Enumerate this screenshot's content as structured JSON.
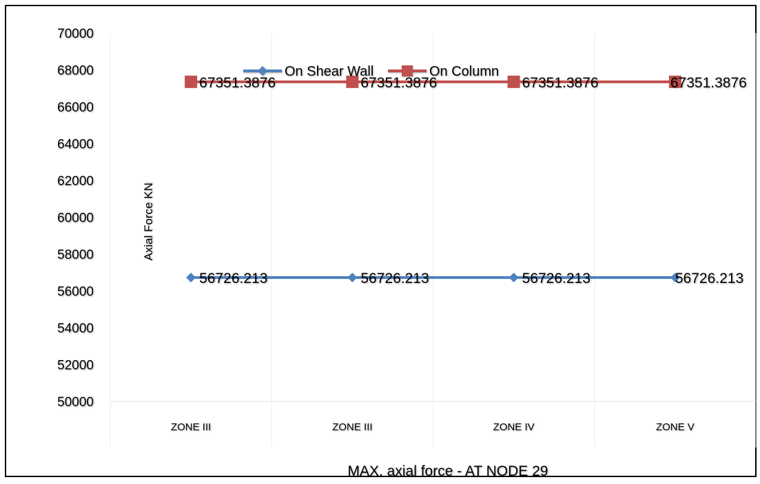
{
  "chart_data": {
    "type": "line",
    "title": "MAX. axial force - AT NODE 29",
    "xlabel": "MAX. axial force - AT NODE 29",
    "ylabel": "Axial Force KN",
    "categories": [
      "ZONE III",
      "ZONE III",
      "ZONE IV",
      "ZONE V"
    ],
    "ylim": [
      50000,
      70000
    ],
    "yticks": [
      "50000",
      "52000",
      "54000",
      "56000",
      "58000",
      "60000",
      "62000",
      "64000",
      "66000",
      "68000",
      "70000"
    ],
    "grid": "vertical",
    "legend_position": "top",
    "series": [
      {
        "name": "On Shear Wall",
        "marker": "diamond",
        "color": "#4f81bd",
        "values": [
          56726.213,
          56726.213,
          56726.213,
          56726.213
        ],
        "labels": [
          "56726.213",
          "56726.213",
          "56726.213",
          "56726.213"
        ]
      },
      {
        "name": "On Column",
        "marker": "square",
        "color": "#c0504d",
        "values": [
          67351.3876,
          67351.3876,
          67351.3876,
          67351.3876
        ],
        "labels": [
          "67351.3876",
          "67351.3876",
          "67351.3876",
          "67351.3876"
        ]
      }
    ]
  }
}
